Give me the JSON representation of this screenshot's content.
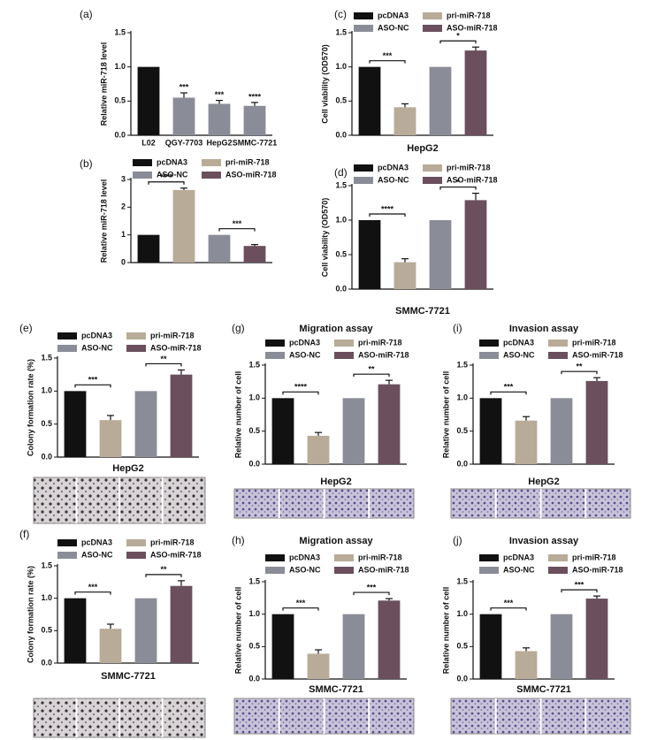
{
  "chart_data": [
    {
      "type": "bar",
      "panel": "(a)",
      "ylabel": "Relative miR-718 level",
      "categories": [
        "L02",
        "QGY-7703",
        "HepG2",
        "SMMC-7721"
      ],
      "values": [
        1.0,
        0.55,
        0.46,
        0.43
      ],
      "errors": [
        null,
        0.07,
        0.05,
        0.05
      ],
      "colors": [
        "#111111",
        "#8a8d97",
        "#8a8d97",
        "#8a8d97"
      ],
      "annotations": [
        "***",
        "***",
        "****"
      ],
      "ylim": [
        0,
        1.5
      ],
      "yticks": [
        {
          "value": 0,
          "label": "0.0"
        },
        0.5,
        {
          "value": 1,
          "label": "1.0"
        },
        1.5
      ]
    },
    {
      "type": "bar",
      "panel": "(b)",
      "ylabel": "Relative miR-718 level",
      "series": [
        {
          "name": "pcDNA3",
          "color": "#111111",
          "values": [
            1.0
          ]
        },
        {
          "name": "pri-miR-718",
          "color": "#b8ab98",
          "values": [
            2.62
          ],
          "errors": [
            0.07
          ]
        },
        {
          "name": "ASO-NC",
          "color": "#8a8d97",
          "values": [
            1.0
          ]
        },
        {
          "name": "ASO-miR-718",
          "color": "#6b4f5d",
          "values": [
            0.6
          ],
          "errors": [
            0.05
          ]
        }
      ],
      "annotations": [
        "****",
        "***"
      ],
      "ylim": [
        0,
        3
      ],
      "yticks": [
        0,
        1,
        2,
        3
      ]
    },
    {
      "type": "bar",
      "panel": "(c)",
      "ylabel": "Cell viability (OD570)",
      "xlabel": "HepG2",
      "series": [
        {
          "name": "pcDNA3",
          "color": "#111111",
          "values": [
            1.0
          ]
        },
        {
          "name": "pri-miR-718",
          "color": "#b8ab98",
          "values": [
            0.41
          ],
          "errors": [
            0.05
          ]
        },
        {
          "name": "ASO-NC",
          "color": "#8a8d97",
          "values": [
            1.0
          ]
        },
        {
          "name": "ASO-miR-718",
          "color": "#6b4f5d",
          "values": [
            1.24
          ],
          "errors": [
            0.05
          ]
        }
      ],
      "annotations": [
        "***",
        "*"
      ],
      "ylim": [
        0,
        1.5
      ],
      "yticks": [
        {
          "value": 0,
          "label": "0.0"
        },
        0.5,
        {
          "value": 1,
          "label": "1.0"
        },
        1.5
      ]
    },
    {
      "type": "bar",
      "panel": "(d)",
      "ylabel": "Cell viability (OD570)",
      "xlabel": "SMMC-7721",
      "series": [
        {
          "name": "pcDNA3",
          "color": "#111111",
          "values": [
            1.0
          ]
        },
        {
          "name": "pri-miR-718",
          "color": "#b8ab98",
          "values": [
            0.39
          ],
          "errors": [
            0.05
          ]
        },
        {
          "name": "ASO-NC",
          "color": "#8a8d97",
          "values": [
            1.0
          ]
        },
        {
          "name": "ASO-miR-718",
          "color": "#6b4f5d",
          "values": [
            1.29
          ],
          "errors": [
            0.1
          ]
        }
      ],
      "annotations": [
        "****",
        "*"
      ],
      "ylim": [
        0,
        1.5
      ],
      "yticks": [
        {
          "value": 0,
          "label": "0.0"
        },
        0.5,
        {
          "value": 1,
          "label": "1.0"
        },
        1.5
      ]
    },
    {
      "type": "bar",
      "panel": "(e)",
      "ylabel": "Colony formation rate (%)",
      "xlabel": "HepG2",
      "series": [
        {
          "name": "pcDNA3",
          "color": "#111111",
          "values": [
            1.0
          ]
        },
        {
          "name": "pri-miR-718",
          "color": "#b8ab98",
          "values": [
            0.56
          ],
          "errors": [
            0.07
          ]
        },
        {
          "name": "ASO-NC",
          "color": "#8a8d97",
          "values": [
            1.0
          ]
        },
        {
          "name": "ASO-miR-718",
          "color": "#6b4f5d",
          "values": [
            1.25
          ],
          "errors": [
            0.07
          ]
        }
      ],
      "annotations": [
        "***",
        "**"
      ],
      "ylim": [
        0,
        1.5
      ],
      "yticks": [
        {
          "value": 0,
          "label": "0.0"
        },
        0.5,
        {
          "value": 1,
          "label": "1.0"
        },
        1.5
      ]
    },
    {
      "type": "bar",
      "panel": "(f)",
      "ylabel": "Colony formation rate (%)",
      "xlabel": "SMMC-7721",
      "series": [
        {
          "name": "pcDNA3",
          "color": "#111111",
          "values": [
            1.0
          ]
        },
        {
          "name": "pri-miR-718",
          "color": "#b8ab98",
          "values": [
            0.53
          ],
          "errors": [
            0.07
          ]
        },
        {
          "name": "ASO-NC",
          "color": "#8a8d97",
          "values": [
            1.0
          ]
        },
        {
          "name": "ASO-miR-718",
          "color": "#6b4f5d",
          "values": [
            1.19
          ],
          "errors": [
            0.08
          ]
        }
      ],
      "annotations": [
        "***",
        "**"
      ],
      "ylim": [
        0,
        1.5
      ],
      "yticks": [
        {
          "value": 0,
          "label": "0.0"
        },
        0.5,
        {
          "value": 1,
          "label": "1.0"
        },
        1.5
      ]
    },
    {
      "type": "bar",
      "panel": "(g)",
      "title": "Migration assay",
      "ylabel": "Relative number of cell",
      "xlabel": "HepG2",
      "series": [
        {
          "name": "pcDNA3",
          "color": "#111111",
          "values": [
            1.0
          ]
        },
        {
          "name": "pri-miR-718",
          "color": "#b8ab98",
          "values": [
            0.43
          ],
          "errors": [
            0.05
          ]
        },
        {
          "name": "ASO-NC",
          "color": "#8a8d97",
          "values": [
            1.0
          ]
        },
        {
          "name": "ASO-miR-718",
          "color": "#6b4f5d",
          "values": [
            1.21
          ],
          "errors": [
            0.06
          ]
        }
      ],
      "annotations": [
        "****",
        "**"
      ],
      "ylim": [
        0,
        1.5
      ],
      "yticks": [
        {
          "value": 0,
          "label": "0.0"
        },
        0.5,
        {
          "value": 1,
          "label": "1.0"
        },
        1.5
      ]
    },
    {
      "type": "bar",
      "panel": "(h)",
      "title": "Migration assay",
      "ylabel": "Relative number of cell",
      "xlabel": "SMMC-7721",
      "series": [
        {
          "name": "pcDNA3",
          "color": "#111111",
          "values": [
            1.0
          ]
        },
        {
          "name": "pri-miR-718",
          "color": "#b8ab98",
          "values": [
            0.39
          ],
          "errors": [
            0.06
          ]
        },
        {
          "name": "ASO-NC",
          "color": "#8a8d97",
          "values": [
            1.0
          ]
        },
        {
          "name": "ASO-miR-718",
          "color": "#6b4f5d",
          "values": [
            1.21
          ],
          "errors": [
            0.03
          ]
        }
      ],
      "annotations": [
        "***",
        "***"
      ],
      "ylim": [
        0,
        1.5
      ],
      "yticks": [
        {
          "value": 0,
          "label": "0.0"
        },
        0.5,
        {
          "value": 1,
          "label": "1.0"
        },
        1.5
      ]
    },
    {
      "type": "bar",
      "panel": "(i)",
      "title": "Invasion assay",
      "ylabel": "Relative number of cell",
      "xlabel": "HepG2",
      "series": [
        {
          "name": "pcDNA3",
          "color": "#111111",
          "values": [
            1.0
          ]
        },
        {
          "name": "pri-miR-718",
          "color": "#b8ab98",
          "values": [
            0.66
          ],
          "errors": [
            0.06
          ]
        },
        {
          "name": "ASO-NC",
          "color": "#8a8d97",
          "values": [
            1.0
          ]
        },
        {
          "name": "ASO-miR-718",
          "color": "#6b4f5d",
          "values": [
            1.26
          ],
          "errors": [
            0.05
          ]
        }
      ],
      "annotations": [
        "***",
        "**"
      ],
      "ylim": [
        0,
        1.5
      ],
      "yticks": [
        {
          "value": 0,
          "label": "0.0"
        },
        0.5,
        {
          "value": 1,
          "label": "1.0"
        },
        1.5
      ]
    },
    {
      "type": "bar",
      "panel": "(j)",
      "title": "Invasion assay",
      "ylabel": "Relative number of cell",
      "xlabel": "SMMC-7721",
      "series": [
        {
          "name": "pcDNA3",
          "color": "#111111",
          "values": [
            1.0
          ]
        },
        {
          "name": "pri-miR-718",
          "color": "#b8ab98",
          "values": [
            0.43
          ],
          "errors": [
            0.05
          ]
        },
        {
          "name": "ASO-NC",
          "color": "#8a8d97",
          "values": [
            1.0
          ]
        },
        {
          "name": "ASO-miR-718",
          "color": "#6b4f5d",
          "values": [
            1.24
          ],
          "errors": [
            0.04
          ]
        }
      ],
      "annotations": [
        "***",
        "***"
      ],
      "ylim": [
        0,
        1.5
      ],
      "yticks": [
        {
          "value": 0,
          "label": "0.0"
        },
        0.5,
        {
          "value": 1,
          "label": "1.0"
        },
        1.5
      ]
    }
  ]
}
